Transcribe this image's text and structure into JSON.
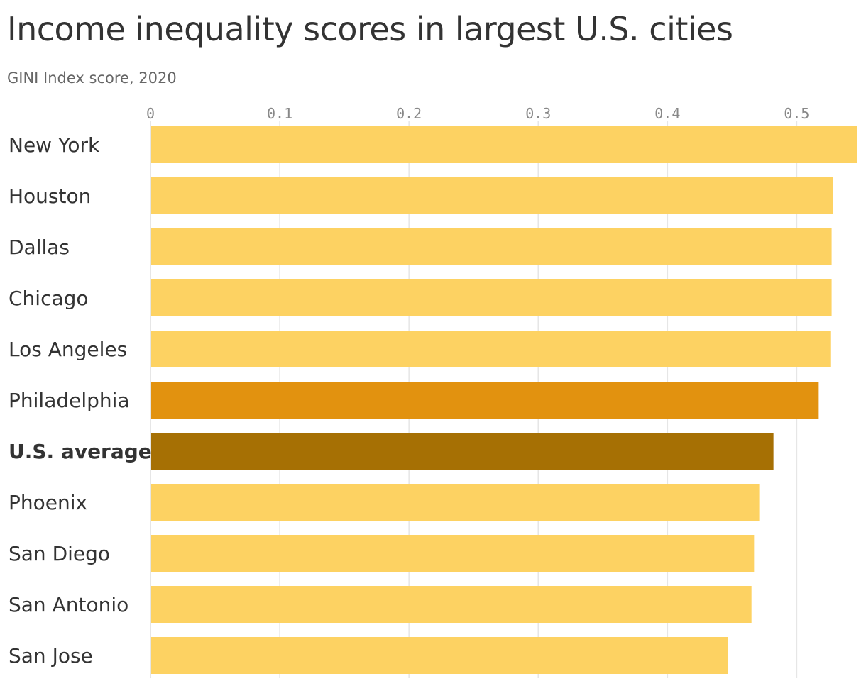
{
  "chart_data": {
    "type": "bar",
    "orientation": "horizontal",
    "title": "Income inequality scores in largest U.S. cities",
    "subtitle": "GINI Index score, 2020",
    "xlabel": "",
    "ylabel": "",
    "xlim": [
      0,
      0.547
    ],
    "ticks": [
      "0",
      "0.1",
      "0.2",
      "0.3",
      "0.4",
      "0.5"
    ],
    "tick_values": [
      0,
      0.1,
      0.2,
      0.3,
      0.4,
      0.5
    ],
    "grid": true,
    "categories": [
      "New York",
      "Houston",
      "Dallas",
      "Chicago",
      "Los Angeles",
      "Philadelphia",
      "U.S. average",
      "Phoenix",
      "San Diego",
      "San Antonio",
      "San Jose"
    ],
    "values": [
      0.547,
      0.528,
      0.527,
      0.527,
      0.526,
      0.517,
      0.482,
      0.471,
      0.467,
      0.465,
      0.447
    ],
    "highlight": {
      "Philadelphia": "accent",
      "U.S. average": "average"
    },
    "bold_categories": [
      "U.S. average"
    ],
    "colors": {
      "default": "#fdd262",
      "accent": "#e2920f",
      "average": "#a67004",
      "grid": "#e6e6e6",
      "axis": "#dddddd"
    }
  }
}
